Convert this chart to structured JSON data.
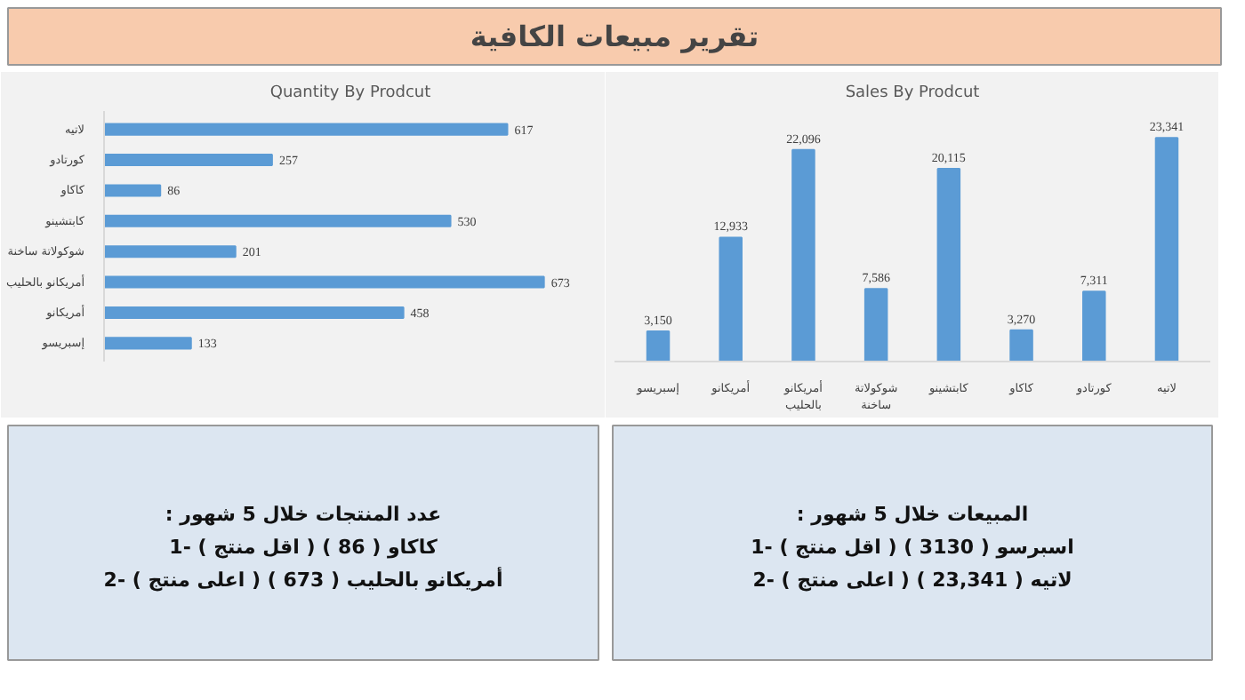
{
  "chart_data": [
    {
      "type": "other",
      "title": "تقرير مبيعات الكافية"
    },
    {
      "type": "bar",
      "title": "Quantity By Prodcut",
      "orientation": "horizontal",
      "categories": [
        "لاتيه",
        "كورتادو",
        "كاكاو",
        "كابتشينو",
        "شوكولاتة ساخنة",
        "أمريكانو بالحليب",
        "أمريكانو",
        "إسبريسو"
      ],
      "values": [
        617,
        257,
        86,
        530,
        201,
        673,
        458,
        133
      ],
      "color": "#5b9bd5",
      "data_labels": true
    },
    {
      "type": "bar",
      "title": "Sales By Prodcut",
      "categories": [
        "إسبريسو",
        "أمريكانو",
        "أمريكانو بالحليب",
        "شوكولاتة ساخنة",
        "كابتشينو",
        "كاكاو",
        "كورتادو",
        "لاتيه"
      ],
      "values": [
        3150,
        12933,
        22096,
        7586,
        20115,
        3270,
        7311,
        23341
      ],
      "color": "#5b9bd5",
      "value_labels": [
        "3,150",
        "12,933",
        "22,096",
        "7,586",
        "20,115",
        "3,270",
        "7,311",
        "23,341"
      ]
    },
    {
      "type": "other",
      "annotations": [
        ": عدد المنتجات خلال 5 شهور",
        "كاكاو ( 86 ) ( اقل منتج ) -1",
        "أمريكانو بالحليب ( 673 ) ( اعلى منتج ) -2"
      ]
    },
    {
      "type": "other",
      "annotations": [
        ": المبيعات خلال 5 شهور",
        "اسبرسو ( 3130 ) ( اقل منتج ) -1",
        "لاتيه ( 23,341 ) ( اعلى منتج ) -2"
      ]
    }
  ]
}
